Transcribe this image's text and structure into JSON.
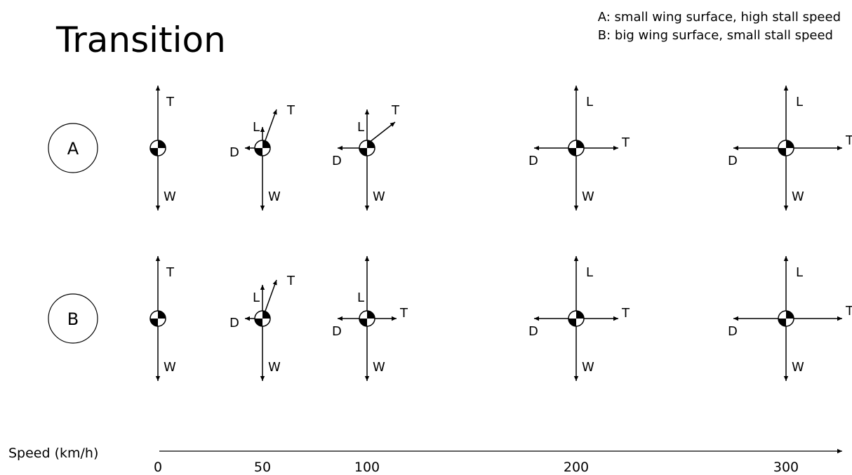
{
  "title": "Transition",
  "legend": {
    "line_a": "A: small wing surface, high stall speed",
    "line_b": "B: big wing surface, small stall speed"
  },
  "speed_axis": {
    "label": "Speed (km/h)",
    "ticks": [
      "0",
      "50",
      "100",
      "200",
      "300"
    ]
  },
  "force_labels": {
    "thrust": "T",
    "lift": "L",
    "drag": "D",
    "weight": "W"
  },
  "rows": [
    {
      "id": "A",
      "label": "A",
      "diagrams": [
        {
          "speed": "0",
          "thrust_direction": "up",
          "lift": false,
          "drag": false
        },
        {
          "speed": "50",
          "thrust_direction": "up-right-steep",
          "lift": true,
          "drag": true
        },
        {
          "speed": "100",
          "thrust_direction": "up-right-45",
          "lift": true,
          "drag": true
        },
        {
          "speed": "200",
          "thrust_direction": "horizontal",
          "lift": true,
          "drag": true
        },
        {
          "speed": "300",
          "thrust_direction": "horizontal",
          "lift": true,
          "drag": true
        }
      ]
    },
    {
      "id": "B",
      "label": "B",
      "diagrams": [
        {
          "speed": "0",
          "thrust_direction": "up",
          "lift": false,
          "drag": false
        },
        {
          "speed": "50",
          "thrust_direction": "up-right-steep",
          "lift": true,
          "drag": true
        },
        {
          "speed": "100",
          "thrust_direction": "horizontal",
          "lift": true,
          "drag": true
        },
        {
          "speed": "200",
          "thrust_direction": "horizontal",
          "lift": true,
          "drag": true
        },
        {
          "speed": "300",
          "thrust_direction": "horizontal",
          "lift": true,
          "drag": true
        }
      ]
    }
  ]
}
